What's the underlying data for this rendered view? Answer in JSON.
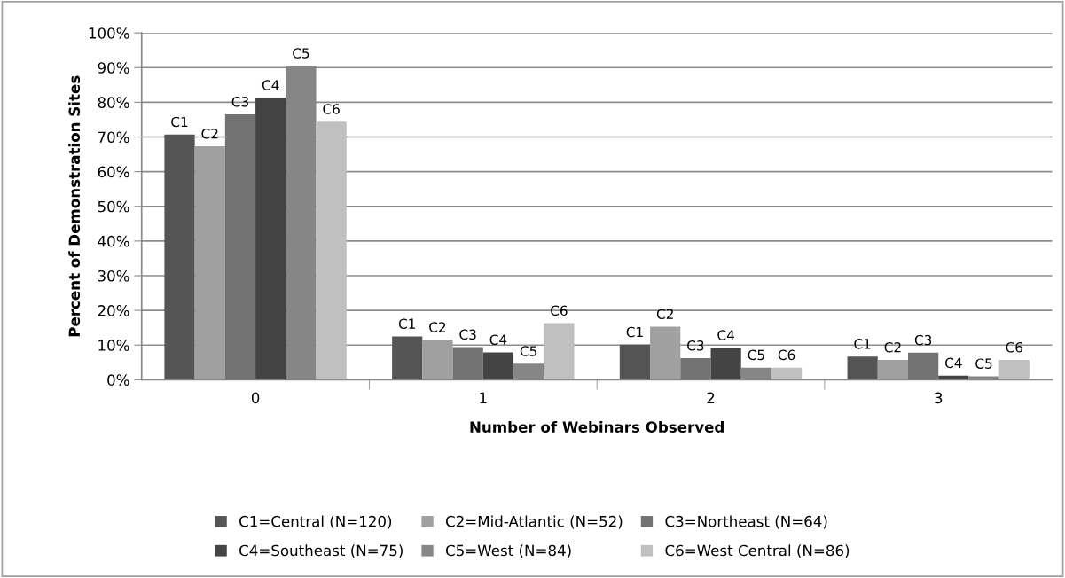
{
  "chart_data": {
    "type": "bar",
    "xlabel": "Number of Webinars Observed",
    "ylabel": "Percent of Demonstration Sites",
    "categories": [
      "0",
      "1",
      "2",
      "3"
    ],
    "series": [
      {
        "name": "C1=Central (N=120)",
        "color": "#555555",
        "values": [
          70.7,
          12.5,
          10.1,
          6.7
        ],
        "value_labels": [
          "C1",
          "C1",
          "C1",
          "C1"
        ]
      },
      {
        "name": "C2=Mid-Atlantic (N=52)",
        "color": "#a0a0a0",
        "values": [
          67.3,
          11.5,
          15.3,
          5.7
        ],
        "value_labels": [
          "C2",
          "C2",
          "C2",
          "C2"
        ]
      },
      {
        "name": "C3=Northeast (N=64)",
        "color": "#727272",
        "values": [
          76.5,
          9.4,
          6.2,
          7.8
        ],
        "value_labels": [
          "C3",
          "C3",
          "C3",
          "C3"
        ]
      },
      {
        "name": "C4=Southeast (N=75)",
        "color": "#444444",
        "values": [
          81.3,
          7.9,
          9.2,
          1.2
        ],
        "value_labels": [
          "C4",
          "C4",
          "C4",
          "C4"
        ]
      },
      {
        "name": "C5=West (N=84)",
        "color": "#868686",
        "values": [
          90.5,
          4.6,
          3.5,
          1.0
        ],
        "value_labels": [
          "C5",
          "C5",
          "C5",
          "C5"
        ]
      },
      {
        "name": "C6=West Central (N=86)",
        "color": "#c0c0c0",
        "values": [
          74.4,
          16.3,
          3.5,
          5.7
        ],
        "value_labels": [
          "C6",
          "C6",
          "C6",
          "C6"
        ]
      }
    ],
    "ylim": [
      0,
      100
    ],
    "yticks": [
      {
        "value": 0,
        "label": "0%"
      },
      {
        "value": 10,
        "label": "10%"
      },
      {
        "value": 20,
        "label": "20%"
      },
      {
        "value": 30,
        "label": "30%"
      },
      {
        "value": 40,
        "label": "40%"
      },
      {
        "value": 50,
        "label": "50%"
      },
      {
        "value": 60,
        "label": "60%"
      },
      {
        "value": 70,
        "label": "70%"
      },
      {
        "value": 80,
        "label": "80%"
      },
      {
        "value": 90,
        "label": "90%"
      },
      {
        "value": 100,
        "label": "100%"
      }
    ],
    "grid": "y",
    "legend": "bottom"
  }
}
